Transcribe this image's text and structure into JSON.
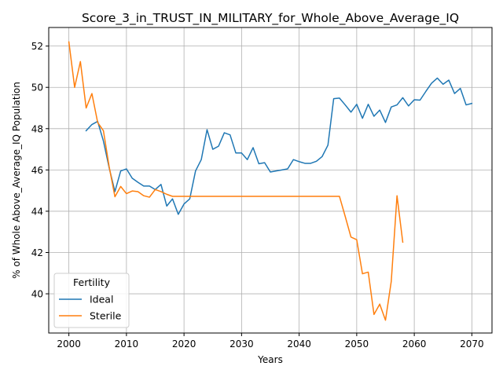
{
  "chart_data": {
    "type": "line",
    "title": "Score_3_in_TRUST_IN_MILITARY_for_Whole_Above_Average_IQ",
    "xlabel": "Years",
    "ylabel": "% of Whole Above_Average_IQ Population",
    "xlim": [
      1996.5,
      2073.5
    ],
    "ylim": [
      38.1,
      52.9
    ],
    "xticks": [
      2000,
      2010,
      2020,
      2030,
      2040,
      2050,
      2060,
      2070
    ],
    "yticks": [
      40,
      42,
      44,
      46,
      48,
      50,
      52
    ],
    "grid": true,
    "legend": {
      "title": "Fertility",
      "placement": "lower-left"
    },
    "series": [
      {
        "name": "Ideal",
        "color": "#1f77b4",
        "x": [
          2003,
          2004,
          2005,
          2006,
          2007,
          2008,
          2009,
          2010,
          2011,
          2012,
          2013,
          2014,
          2015,
          2016,
          2017,
          2018,
          2019,
          2020,
          2021,
          2022,
          2023,
          2024,
          2025,
          2026,
          2027,
          2028,
          2029,
          2030,
          2031,
          2032,
          2033,
          2034,
          2035,
          2036,
          2037,
          2038,
          2039,
          2040,
          2041,
          2042,
          2043,
          2044,
          2045,
          2046,
          2047,
          2048,
          2049,
          2050,
          2051,
          2052,
          2053,
          2054,
          2055,
          2056,
          2057,
          2058,
          2059,
          2060,
          2061,
          2062,
          2063,
          2064,
          2065,
          2066,
          2067,
          2068,
          2069,
          2070
        ],
        "y": [
          47.9,
          48.2,
          48.35,
          47.4,
          46.1,
          44.95,
          45.95,
          46.05,
          45.6,
          45.4,
          45.22,
          45.22,
          45.05,
          45.3,
          44.25,
          44.6,
          43.85,
          44.35,
          44.6,
          45.95,
          46.5,
          47.95,
          47.0,
          47.15,
          47.8,
          47.7,
          46.82,
          46.82,
          46.5,
          47.08,
          46.3,
          46.35,
          45.9,
          45.95,
          46.0,
          46.05,
          46.5,
          46.4,
          46.32,
          46.32,
          46.42,
          46.65,
          47.2,
          49.45,
          49.48,
          49.15,
          48.8,
          49.18,
          48.5,
          49.18,
          48.6,
          48.9,
          48.3,
          49.05,
          49.15,
          49.5,
          49.1,
          49.4,
          49.38,
          49.8,
          50.2,
          50.45,
          50.15,
          50.35,
          49.7,
          49.95,
          49.15,
          49.22
        ]
      },
      {
        "name": "Sterile",
        "color": "#ff7f0e",
        "x": [
          2000,
          2001,
          2002,
          2003,
          2004,
          2005,
          2006,
          2007,
          2008,
          2009,
          2010,
          2011,
          2012,
          2013,
          2014,
          2015,
          2016,
          2017,
          2018,
          2019,
          2020,
          2021,
          2022,
          2023,
          2024,
          2025,
          2026,
          2027,
          2028,
          2029,
          2030,
          2031,
          2032,
          2033,
          2034,
          2035,
          2036,
          2037,
          2038,
          2039,
          2040,
          2041,
          2042,
          2043,
          2044,
          2045,
          2046,
          2047,
          2048,
          2049,
          2050,
          2051,
          2052,
          2053,
          2054,
          2055,
          2056,
          2057,
          2058
        ],
        "y": [
          52.2,
          50.0,
          51.25,
          49.0,
          49.7,
          48.3,
          47.9,
          46.15,
          44.7,
          45.2,
          44.85,
          44.98,
          44.95,
          44.75,
          44.68,
          45.05,
          44.95,
          44.82,
          44.72,
          44.72,
          44.72,
          44.72,
          44.72,
          44.72,
          44.72,
          44.72,
          44.72,
          44.72,
          44.72,
          44.72,
          44.72,
          44.72,
          44.72,
          44.72,
          44.72,
          44.72,
          44.72,
          44.72,
          44.72,
          44.72,
          44.72,
          44.72,
          44.72,
          44.72,
          44.72,
          44.72,
          44.72,
          44.72,
          43.75,
          42.75,
          42.62,
          40.97,
          41.05,
          39.0,
          39.5,
          38.72,
          40.6,
          44.75,
          42.5
        ]
      }
    ]
  }
}
